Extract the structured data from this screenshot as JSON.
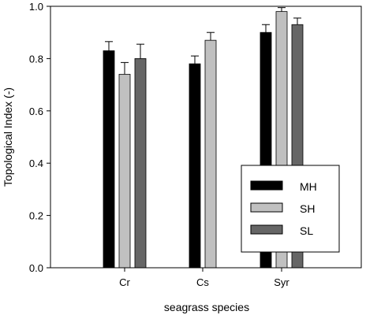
{
  "chart_data": {
    "type": "bar",
    "title": "",
    "xlabel": "seagrass species",
    "ylabel": "Topological Index (-)",
    "categories": [
      "Cr",
      "Cs",
      "Syr"
    ],
    "ylim": [
      0,
      1.0
    ],
    "yticks": [
      "0.0",
      "0.2",
      "0.4",
      "0.6",
      "0.8",
      "1.0"
    ],
    "grid": false,
    "legend_position": "bottom-right",
    "series": [
      {
        "name": "MH",
        "color": "#000000",
        "values": [
          0.83,
          0.78,
          0.9
        ],
        "errors": [
          0.035,
          0.03,
          0.03
        ]
      },
      {
        "name": "SH",
        "color": "#c0c0c0",
        "values": [
          0.74,
          0.87,
          0.98
        ],
        "errors": [
          0.045,
          0.03,
          0.015
        ]
      },
      {
        "name": "SL",
        "color": "#666666",
        "values": [
          0.8,
          null,
          0.93
        ],
        "errors": [
          0.055,
          null,
          0.025
        ]
      }
    ]
  }
}
